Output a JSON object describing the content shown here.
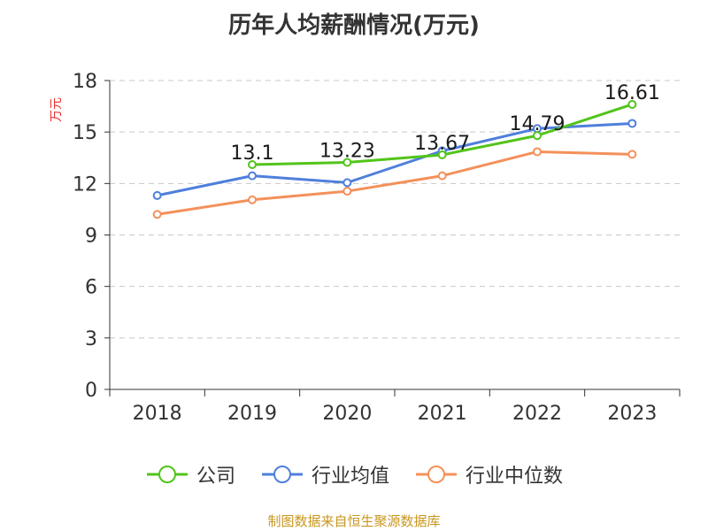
{
  "title": "历年人均薪酬情况(万元)",
  "source": "制图数据来自恒生聚源数据库",
  "chart_data": {
    "type": "line",
    "title": "历年人均薪酬情况(万元)",
    "ylabel": "万元",
    "categories": [
      "2018",
      "2019",
      "2020",
      "2021",
      "2022",
      "2023"
    ],
    "ylim": [
      0,
      18
    ],
    "yticks": [
      0,
      3,
      6,
      9,
      12,
      15,
      18
    ],
    "grid": true,
    "legend_position": "bottom",
    "series": [
      {
        "name": "公司",
        "color": "#52c41a",
        "values": [
          null,
          13.1,
          13.23,
          13.67,
          14.79,
          16.61
        ],
        "labels": [
          "",
          "13.1",
          "13.23",
          "13.67",
          "14.79",
          "16.61"
        ]
      },
      {
        "name": "行业均值",
        "color": "#4f7fdc",
        "values": [
          11.3,
          12.45,
          12.05,
          13.9,
          15.2,
          15.5
        ]
      },
      {
        "name": "行业中位数",
        "color": "#f4905a",
        "values": [
          10.2,
          11.05,
          11.55,
          12.45,
          13.85,
          13.7
        ]
      }
    ]
  }
}
